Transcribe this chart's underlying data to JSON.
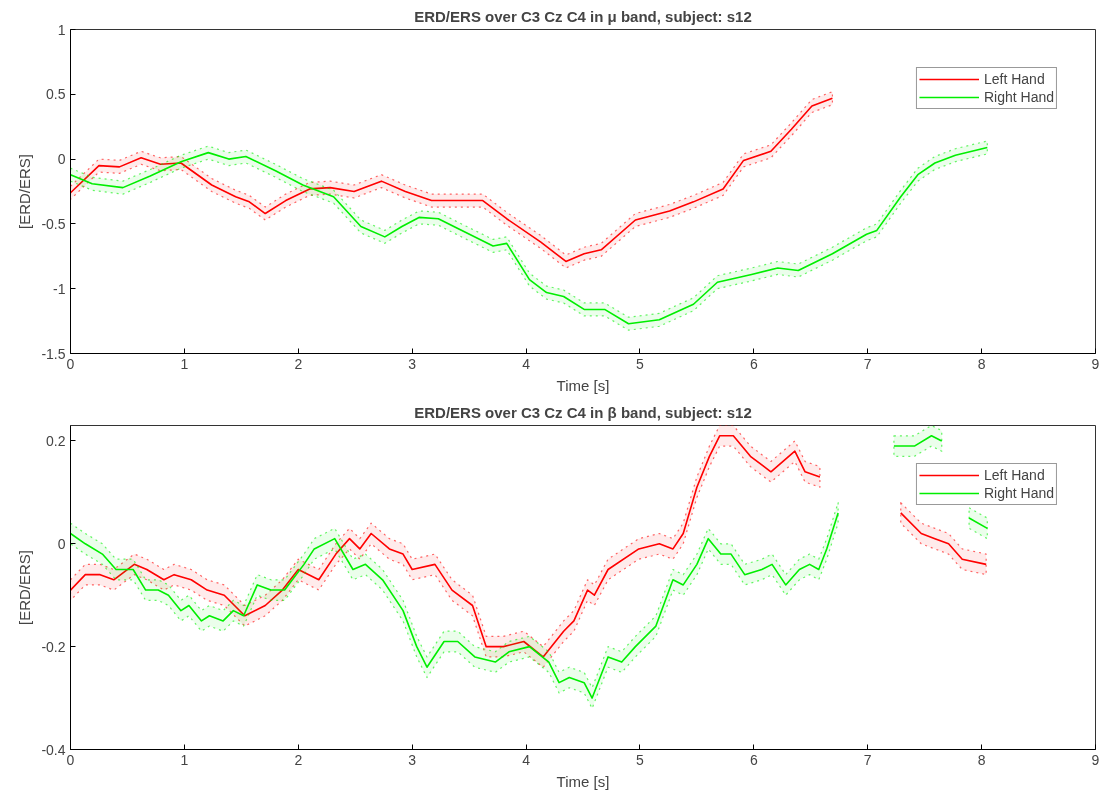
{
  "chart_data": [
    {
      "type": "line",
      "title": "ERD/ERS over C3 Cz C4 in μ band, subject: s12",
      "xlabel": "Time [s]",
      "ylabel": "[ERD/ERS]",
      "xlim": [
        0,
        9
      ],
      "xticks": [
        0,
        1,
        2,
        3,
        4,
        5,
        6,
        7,
        8,
        9
      ],
      "ylim": [
        -1.5,
        1
      ],
      "yticks": [
        -1.5,
        -1,
        -0.5,
        0,
        0.5,
        1
      ],
      "grid": false,
      "legend": "top right",
      "line_style": "solid",
      "series": [
        {
          "name": "Left Hand",
          "color": "#ff0000",
          "x": [
            0,
            0.25,
            0.43,
            0.62,
            0.79,
            0.97,
            1.24,
            1.45,
            1.57,
            1.71,
            1.89,
            2.1,
            2.28,
            2.49,
            2.73,
            2.94,
            3.17,
            3.62,
            3.83,
            4.13,
            4.35,
            4.51,
            4.66,
            4.96,
            5.26,
            5.47,
            5.73,
            5.91,
            6.15,
            6.33,
            6.51,
            6.69
          ],
          "values": [
            -0.26,
            -0.05,
            -0.06,
            0.01,
            -0.04,
            -0.03,
            -0.2,
            -0.29,
            -0.33,
            -0.42,
            -0.32,
            -0.23,
            -0.22,
            -0.25,
            -0.17,
            -0.25,
            -0.32,
            -0.32,
            -0.46,
            -0.64,
            -0.79,
            -0.73,
            -0.7,
            -0.47,
            -0.4,
            -0.33,
            -0.23,
            -0.01,
            0.06,
            0.23,
            0.41,
            0.47
          ],
          "lower": [
            -0.31,
            -0.1,
            -0.11,
            -0.04,
            -0.09,
            -0.08,
            -0.25,
            -0.34,
            -0.38,
            -0.47,
            -0.37,
            -0.28,
            -0.27,
            -0.3,
            -0.22,
            -0.3,
            -0.37,
            -0.37,
            -0.51,
            -0.69,
            -0.84,
            -0.78,
            -0.75,
            -0.52,
            -0.45,
            -0.38,
            -0.28,
            -0.06,
            0.01,
            0.18,
            0.36,
            0.42
          ],
          "upper": [
            -0.21,
            0.0,
            -0.01,
            0.06,
            0.01,
            0.02,
            -0.15,
            -0.24,
            -0.28,
            -0.37,
            -0.27,
            -0.18,
            -0.17,
            -0.2,
            -0.12,
            -0.2,
            -0.27,
            -0.27,
            -0.41,
            -0.59,
            -0.74,
            -0.68,
            -0.65,
            -0.42,
            -0.35,
            -0.28,
            -0.18,
            0.04,
            0.11,
            0.28,
            0.46,
            0.52
          ]
        },
        {
          "name": "Right Hand",
          "color": "#00ee00",
          "x": [
            0,
            0.19,
            0.46,
            0.7,
            0.97,
            1.21,
            1.39,
            1.54,
            1.8,
            2.04,
            2.31,
            2.55,
            2.76,
            2.91,
            3.06,
            3.23,
            3.41,
            3.71,
            3.83,
            4.03,
            4.18,
            4.33,
            4.51,
            4.69,
            4.9,
            5.17,
            5.47,
            5.68,
            5.98,
            6.21,
            6.39,
            6.69,
            6.99,
            7.08,
            7.29,
            7.44,
            7.59,
            7.77,
            8.05
          ],
          "values": [
            -0.12,
            -0.19,
            -0.22,
            -0.13,
            -0.02,
            0.05,
            0.0,
            0.02,
            -0.09,
            -0.2,
            -0.29,
            -0.52,
            -0.6,
            -0.52,
            -0.45,
            -0.46,
            -0.54,
            -0.67,
            -0.65,
            -0.93,
            -1.03,
            -1.06,
            -1.16,
            -1.16,
            -1.27,
            -1.24,
            -1.12,
            -0.95,
            -0.89,
            -0.84,
            -0.86,
            -0.73,
            -0.58,
            -0.55,
            -0.29,
            -0.12,
            -0.03,
            0.03,
            0.09
          ],
          "lower": [
            -0.17,
            -0.24,
            -0.27,
            -0.18,
            -0.07,
            0.0,
            -0.05,
            -0.03,
            -0.14,
            -0.25,
            -0.34,
            -0.57,
            -0.65,
            -0.57,
            -0.5,
            -0.51,
            -0.59,
            -0.72,
            -0.7,
            -0.98,
            -1.08,
            -1.11,
            -1.21,
            -1.21,
            -1.32,
            -1.29,
            -1.17,
            -1.0,
            -0.94,
            -0.89,
            -0.91,
            -0.78,
            -0.63,
            -0.6,
            -0.34,
            -0.17,
            -0.08,
            -0.02,
            0.04
          ],
          "upper": [
            -0.07,
            -0.14,
            -0.17,
            -0.08,
            0.03,
            0.1,
            0.05,
            0.07,
            -0.04,
            -0.15,
            -0.24,
            -0.47,
            -0.55,
            -0.47,
            -0.4,
            -0.41,
            -0.49,
            -0.62,
            -0.6,
            -0.88,
            -0.98,
            -1.01,
            -1.11,
            -1.11,
            -1.22,
            -1.19,
            -1.07,
            -0.9,
            -0.84,
            -0.79,
            -0.81,
            -0.68,
            -0.53,
            -0.5,
            -0.24,
            -0.07,
            0.02,
            0.08,
            0.14
          ]
        }
      ]
    },
    {
      "type": "line",
      "title": "ERD/ERS over C3 Cz C4 in β band, subject: s12",
      "xlabel": "Time [s]",
      "ylabel": "[ERD/ERS]",
      "xlim": [
        0,
        9
      ],
      "xticks": [
        0,
        1,
        2,
        3,
        4,
        5,
        6,
        7,
        8,
        9
      ],
      "ylim": [
        -0.4,
        0.23
      ],
      "yticks": [
        -0.4,
        -0.2,
        0,
        0.2
      ],
      "grid": false,
      "legend": "top right",
      "line_style": "solid",
      "series": [
        {
          "name": "Left Hand",
          "color": "#ff0000",
          "x": [
            0,
            0.13,
            0.26,
            0.38,
            0.56,
            0.67,
            0.82,
            0.91,
            1.06,
            1.2,
            1.35,
            1.53,
            1.71,
            1.86,
            2.0,
            2.18,
            2.33,
            2.45,
            2.54,
            2.64,
            2.8,
            2.92,
            3.0,
            3.2,
            3.35,
            3.53,
            3.65,
            3.8,
            3.98,
            4.15,
            4.33,
            4.42,
            4.54,
            4.6,
            4.72,
            4.99,
            5.17,
            5.29,
            5.38,
            5.5,
            5.61,
            5.7,
            5.82,
            5.97,
            6.15,
            6.36,
            6.45,
            6.58,
            7.0,
            7.29,
            7.47,
            7.59,
            7.71,
            7.83,
            8.04
          ],
          "values": [
            -0.09,
            -0.06,
            -0.06,
            -0.07,
            -0.04,
            -0.05,
            -0.07,
            -0.06,
            -0.07,
            -0.09,
            -0.1,
            -0.14,
            -0.12,
            -0.09,
            -0.05,
            -0.07,
            -0.02,
            0.01,
            -0.01,
            0.02,
            -0.01,
            -0.02,
            -0.05,
            -0.04,
            -0.09,
            -0.12,
            -0.2,
            -0.2,
            -0.19,
            -0.22,
            -0.17,
            -0.15,
            -0.09,
            -0.1,
            -0.05,
            -0.01,
            0.0,
            -0.01,
            0.02,
            0.11,
            0.17,
            0.21,
            0.21,
            0.17,
            0.14,
            0.18,
            0.14,
            0.13,
            null,
            0.06,
            0.02,
            0.01,
            0.0,
            -0.03,
            -0.04
          ],
          "lower": [
            -0.11,
            -0.08,
            -0.08,
            -0.09,
            -0.06,
            -0.07,
            -0.09,
            -0.08,
            -0.09,
            -0.11,
            -0.12,
            -0.16,
            -0.14,
            -0.11,
            -0.07,
            -0.09,
            -0.04,
            -0.01,
            -0.03,
            0.0,
            -0.03,
            -0.04,
            -0.07,
            -0.06,
            -0.11,
            -0.14,
            -0.22,
            -0.22,
            -0.21,
            -0.24,
            -0.19,
            -0.17,
            -0.11,
            -0.12,
            -0.07,
            -0.03,
            -0.02,
            -0.03,
            0.0,
            0.09,
            0.15,
            0.19,
            0.19,
            0.15,
            0.12,
            0.16,
            0.12,
            0.11,
            null,
            0.04,
            0.0,
            -0.01,
            -0.02,
            -0.05,
            -0.06
          ],
          "upper": [
            -0.07,
            -0.04,
            -0.04,
            -0.05,
            -0.02,
            -0.03,
            -0.05,
            -0.04,
            -0.05,
            -0.07,
            -0.08,
            -0.12,
            -0.1,
            -0.07,
            -0.03,
            -0.05,
            0.0,
            0.03,
            0.01,
            0.04,
            0.01,
            0.0,
            -0.03,
            -0.02,
            -0.07,
            -0.1,
            -0.18,
            -0.18,
            -0.17,
            -0.2,
            -0.15,
            -0.13,
            -0.07,
            -0.08,
            -0.03,
            0.01,
            0.02,
            0.01,
            0.04,
            0.13,
            0.19,
            0.23,
            0.23,
            0.19,
            0.16,
            0.2,
            0.16,
            0.15,
            null,
            0.08,
            0.04,
            0.03,
            0.02,
            -0.01,
            -0.02
          ]
        },
        {
          "name": "Right Hand",
          "color": "#00ee00",
          "x": [
            0,
            0.13,
            0.28,
            0.4,
            0.55,
            0.66,
            0.77,
            0.86,
            0.97,
            1.04,
            1.15,
            1.22,
            1.34,
            1.43,
            1.52,
            1.64,
            1.76,
            1.88,
            2.05,
            2.14,
            2.32,
            2.48,
            2.59,
            2.74,
            2.92,
            3.04,
            3.13,
            3.28,
            3.4,
            3.55,
            3.73,
            3.85,
            4.03,
            4.2,
            4.29,
            4.38,
            4.51,
            4.58,
            4.72,
            4.84,
            4.96,
            5.14,
            5.29,
            5.38,
            5.5,
            5.6,
            5.71,
            5.8,
            5.92,
            6.07,
            6.16,
            6.28,
            6.4,
            6.49,
            6.57,
            6.64,
            6.74,
            7.0,
            7.23,
            7.41,
            7.56,
            7.65,
            7.75,
            7.89,
            8.05
          ],
          "values": [
            0.02,
            0.0,
            -0.02,
            -0.05,
            -0.05,
            -0.09,
            -0.09,
            -0.1,
            -0.13,
            -0.12,
            -0.15,
            -0.14,
            -0.15,
            -0.13,
            -0.14,
            -0.08,
            -0.09,
            -0.09,
            -0.04,
            -0.01,
            0.01,
            -0.05,
            -0.04,
            -0.07,
            -0.13,
            -0.2,
            -0.24,
            -0.19,
            -0.19,
            -0.22,
            -0.23,
            -0.21,
            -0.2,
            -0.23,
            -0.27,
            -0.26,
            -0.27,
            -0.3,
            -0.22,
            -0.23,
            -0.2,
            -0.16,
            -0.07,
            -0.08,
            -0.04,
            0.01,
            -0.02,
            -0.02,
            -0.06,
            -0.05,
            -0.04,
            -0.08,
            -0.05,
            -0.04,
            -0.05,
            -0.01,
            0.06,
            null,
            0.19,
            0.19,
            0.21,
            0.2,
            null,
            0.05,
            0.03
          ],
          "lower": [
            0.0,
            -0.02,
            -0.04,
            -0.07,
            -0.07,
            -0.11,
            -0.11,
            -0.12,
            -0.15,
            -0.14,
            -0.17,
            -0.16,
            -0.17,
            -0.15,
            -0.16,
            -0.1,
            -0.11,
            -0.11,
            -0.06,
            -0.03,
            -0.01,
            -0.07,
            -0.06,
            -0.09,
            -0.15,
            -0.22,
            -0.26,
            -0.21,
            -0.21,
            -0.24,
            -0.25,
            -0.23,
            -0.22,
            -0.25,
            -0.29,
            -0.28,
            -0.29,
            -0.32,
            -0.24,
            -0.25,
            -0.22,
            -0.18,
            -0.09,
            -0.1,
            -0.06,
            -0.01,
            -0.04,
            -0.04,
            -0.08,
            -0.07,
            -0.06,
            -0.1,
            -0.07,
            -0.06,
            -0.07,
            -0.03,
            0.04,
            null,
            0.17,
            0.17,
            0.19,
            0.18,
            null,
            0.03,
            0.01
          ],
          "upper": [
            0.04,
            0.02,
            0.0,
            -0.03,
            -0.03,
            -0.07,
            -0.07,
            -0.08,
            -0.11,
            -0.1,
            -0.13,
            -0.12,
            -0.13,
            -0.11,
            -0.12,
            -0.06,
            -0.07,
            -0.07,
            -0.02,
            0.01,
            0.03,
            -0.03,
            -0.02,
            -0.05,
            -0.11,
            -0.18,
            -0.22,
            -0.17,
            -0.17,
            -0.2,
            -0.21,
            -0.19,
            -0.18,
            -0.21,
            -0.25,
            -0.24,
            -0.25,
            -0.28,
            -0.2,
            -0.21,
            -0.18,
            -0.14,
            -0.05,
            -0.06,
            -0.02,
            0.03,
            0.0,
            0.0,
            -0.04,
            -0.03,
            -0.02,
            -0.06,
            -0.03,
            -0.02,
            -0.03,
            0.01,
            0.08,
            null,
            0.21,
            0.21,
            0.23,
            0.22,
            null,
            0.07,
            0.05
          ]
        }
      ]
    }
  ]
}
